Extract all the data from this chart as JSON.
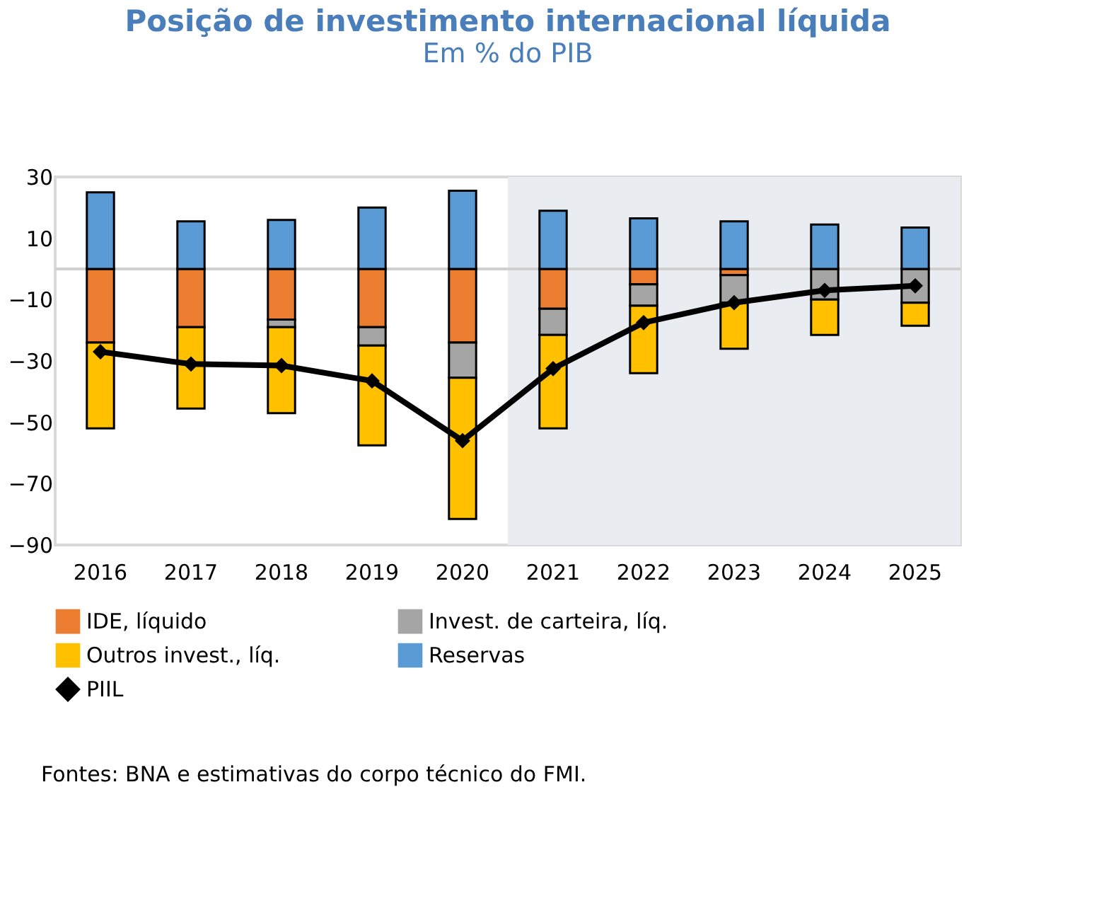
{
  "chart_data": {
    "type": "bar",
    "title": "Posição de investimento internacional líquida",
    "subtitle": "Em % do PIB",
    "categories": [
      "2016",
      "2017",
      "2018",
      "2019",
      "2020",
      "2021",
      "2022",
      "2023",
      "2024",
      "2025"
    ],
    "stacked": true,
    "series": [
      {
        "name": "IDE, líquido",
        "color": "#ed7d31",
        "values": [
          -24,
          -19,
          -16.5,
          -19,
          -24,
          -13,
          -5,
          -2,
          null,
          null
        ]
      },
      {
        "name": "Invest. de carteira, líq.",
        "color": "#a5a5a5",
        "values": [
          null,
          null,
          -2.5,
          -6,
          -11.5,
          -8.5,
          -7,
          -9,
          -10,
          -11
        ]
      },
      {
        "name": "Outros invest., líq.",
        "color": "#ffc000",
        "values": [
          -28,
          -26.5,
          -28,
          -32.5,
          -46,
          -30.5,
          -22,
          -15,
          -11.5,
          -7.5
        ]
      },
      {
        "name": "Reservas",
        "color": "#5b9bd5",
        "values": [
          25,
          15.5,
          16,
          20,
          25.5,
          19,
          16.5,
          15.5,
          14.5,
          13.5
        ]
      },
      {
        "name": "PIIL",
        "type": "line",
        "color": "#000000",
        "marker": "diamond",
        "values": [
          -27,
          -31,
          -31.5,
          -36.5,
          -56,
          -32.5,
          -17.5,
          -11,
          -7,
          -5.5
        ]
      }
    ],
    "ylim": [
      -90,
      30
    ],
    "yticks": [
      -90,
      -70,
      -50,
      -30,
      -10,
      10,
      30
    ],
    "bands": [
      {
        "axis": "x",
        "from": "2021",
        "to": "2025",
        "color": "#e9edf2"
      }
    ],
    "legend": "bottom",
    "annotations": [
      "Fontes: BNA e estimativas do corpo técnico do FMI."
    ]
  }
}
